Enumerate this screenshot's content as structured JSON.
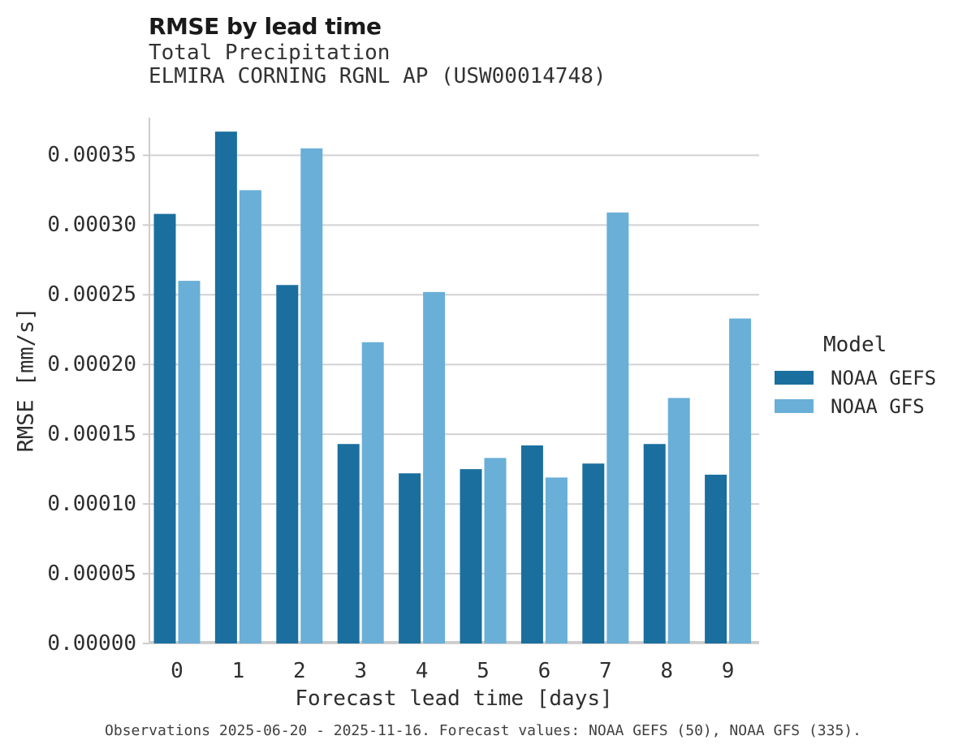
{
  "header": {
    "title": "RMSE by lead time",
    "subtitle1": "Total Precipitation",
    "subtitle2": "ELMIRA CORNING RGNL AP (USW00014748)"
  },
  "axes": {
    "xlabel": "Forecast lead time [days]",
    "ylabel": "RMSE [mm/s]"
  },
  "legend": {
    "title": "Model",
    "entries": [
      {
        "label": "NOAA GEFS",
        "color": "#1a6f9e"
      },
      {
        "label": "NOAA GFS",
        "color": "#69afd7"
      }
    ]
  },
  "caption": "Observations 2025-06-20 - 2025-11-16. Forecast values: NOAA GEFS (50), NOAA GFS (335).",
  "colors": {
    "noaa_gefs": "#1a6f9e",
    "noaa_gfs": "#69afd7",
    "gridline": "#d2d2d2",
    "spine": "#cdcdcd",
    "text": "#2b2b2b",
    "caption_text": "#404040",
    "background": "#ffffff"
  },
  "chart_data": {
    "type": "bar",
    "title": "RMSE by lead time",
    "subtitle": [
      "Total Precipitation",
      "ELMIRA CORNING RGNL AP (USW00014748)"
    ],
    "xlabel": "Forecast lead time [days]",
    "ylabel": "RMSE [mm/s]",
    "categories": [
      "0",
      "1",
      "2",
      "3",
      "4",
      "5",
      "6",
      "7",
      "8",
      "9"
    ],
    "series": [
      {
        "name": "NOAA GEFS",
        "color": "#1a6f9e",
        "values": [
          0.000308,
          0.000367,
          0.000257,
          0.000143,
          0.000122,
          0.000125,
          0.000142,
          0.000129,
          0.000143,
          0.000121
        ]
      },
      {
        "name": "NOAA GFS",
        "color": "#69afd7",
        "values": [
          0.00026,
          0.000325,
          0.000355,
          0.000216,
          0.000252,
          0.000133,
          0.000119,
          0.000309,
          0.000176,
          0.000233
        ]
      }
    ],
    "ylim": [
      0,
      0.000377
    ],
    "yticks": [
      0,
      5e-05,
      0.0001,
      0.00015,
      0.0002,
      0.00025,
      0.0003,
      0.00035
    ],
    "ytick_labels": [
      "0.00000",
      "0.00005",
      "0.00010",
      "0.00015",
      "0.00020",
      "0.00025",
      "0.00030",
      "0.00035"
    ],
    "grid": true,
    "legend_title": "Model",
    "legend_position": "right",
    "caption": "Observations 2025-06-20 - 2025-11-16. Forecast values: NOAA GEFS (50), NOAA GFS (335)."
  }
}
